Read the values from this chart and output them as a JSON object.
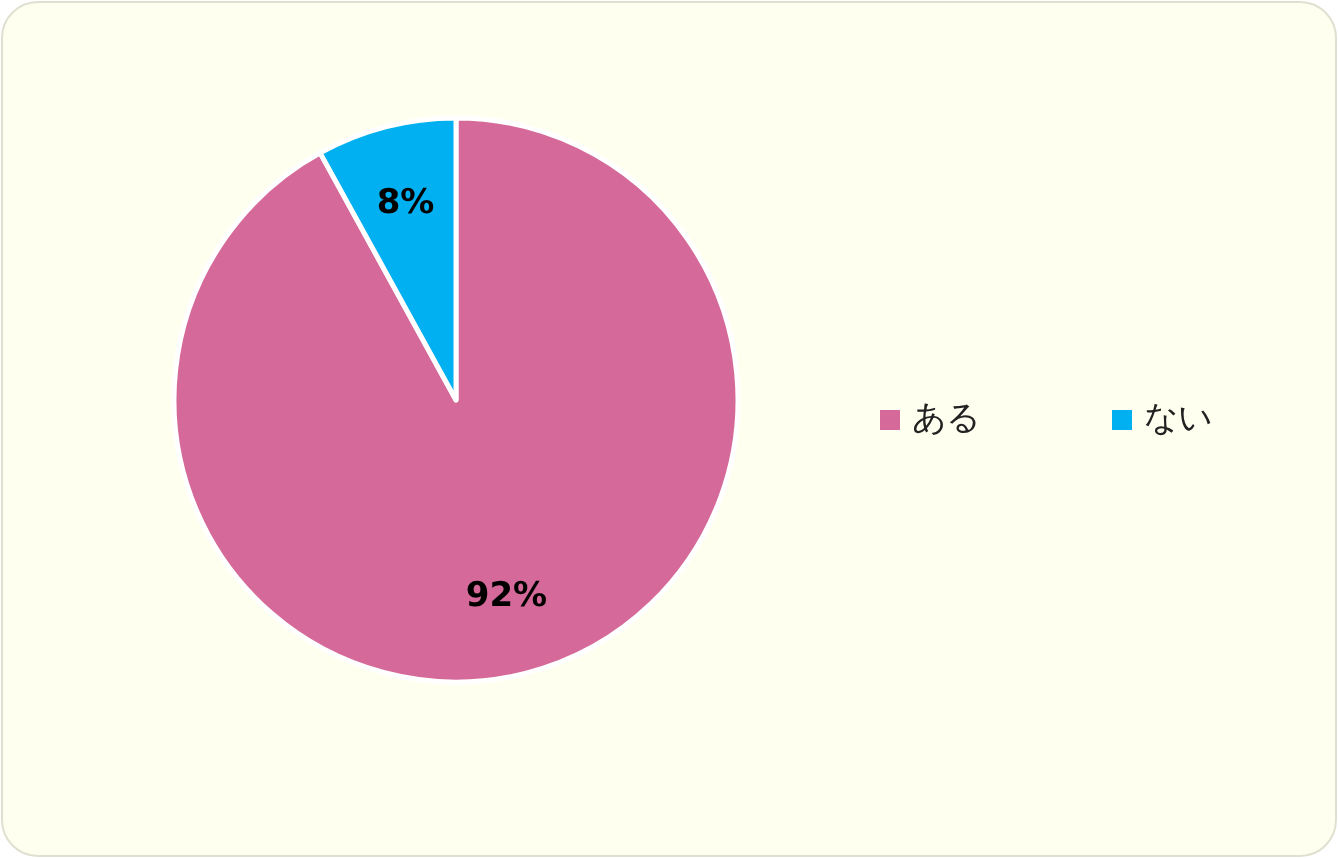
{
  "chart_data": {
    "type": "pie",
    "categories": [
      "ある",
      "ない"
    ],
    "values": [
      92,
      8
    ],
    "colors": [
      "#d5699a",
      "#00b0f0"
    ],
    "value_labels": [
      "92%",
      "8%"
    ],
    "legend": "right"
  }
}
